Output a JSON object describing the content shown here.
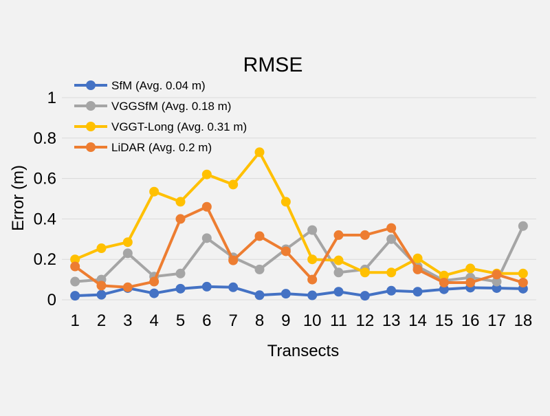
{
  "chart_data": {
    "type": "line",
    "title": "RMSE",
    "xlabel": "Transects",
    "ylabel": "Error (m)",
    "x": [
      "1",
      "2",
      "3",
      "4",
      "5",
      "6",
      "7",
      "8",
      "9",
      "10",
      "11",
      "12",
      "13",
      "14",
      "15",
      "16",
      "17",
      "18"
    ],
    "ylim": [
      0,
      1
    ],
    "yticks": [
      "0",
      "0.2",
      "0.4",
      "0.6",
      "0.8",
      "1"
    ],
    "grid": true,
    "legend_position": "top-left",
    "series": [
      {
        "name": "SfM (Avg. 0.04 m)",
        "color": "#4472c4",
        "values": [
          0.02,
          0.025,
          0.058,
          0.032,
          0.055,
          0.065,
          0.062,
          0.023,
          0.03,
          0.022,
          0.04,
          0.02,
          0.045,
          0.04,
          0.052,
          0.06,
          0.058,
          0.055
        ]
      },
      {
        "name": "VGGSfM (Avg. 0.18 m)",
        "color": "#a5a5a5",
        "values": [
          0.09,
          0.1,
          0.23,
          0.115,
          0.13,
          0.305,
          0.21,
          0.15,
          0.25,
          0.345,
          0.135,
          0.15,
          0.3,
          0.165,
          0.095,
          0.11,
          0.09,
          0.365
        ]
      },
      {
        "name": "VGGT-Long (Avg. 0.31 m)",
        "color": "#ffc000",
        "values": [
          0.2,
          0.255,
          0.285,
          0.535,
          0.485,
          0.62,
          0.57,
          0.73,
          0.485,
          0.2,
          0.195,
          0.135,
          0.135,
          0.205,
          0.12,
          0.155,
          0.13,
          0.13
        ]
      },
      {
        "name": "LiDAR (Avg. 0.2 m)",
        "color": "#ed7d31",
        "values": [
          0.165,
          0.07,
          0.062,
          0.09,
          0.4,
          0.46,
          0.195,
          0.315,
          0.24,
          0.1,
          0.32,
          0.32,
          0.355,
          0.15,
          0.085,
          0.085,
          0.125,
          0.085
        ]
      }
    ]
  }
}
